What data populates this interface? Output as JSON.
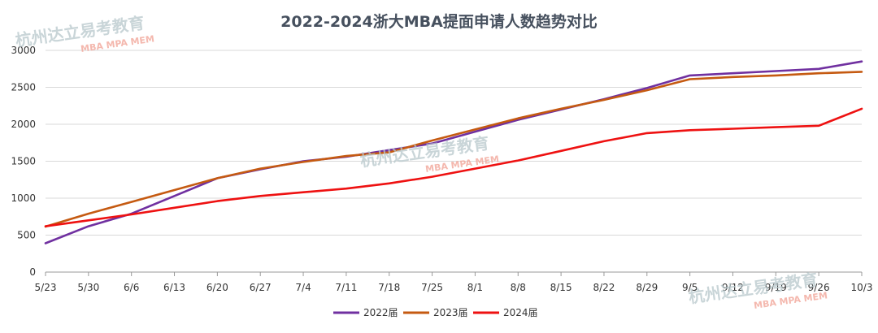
{
  "chart_data": {
    "type": "line",
    "title": "2022-2024浙大MBA提面申请人数趋势对比",
    "xlabel": "",
    "ylabel": "",
    "ylim": [
      0,
      3000
    ],
    "yticks": [
      0,
      500,
      1000,
      1500,
      2000,
      2500,
      3000
    ],
    "grid": "horizontal",
    "legend_position": "bottom",
    "categories": [
      "5/23",
      "5/30",
      "6/6",
      "6/13",
      "6/20",
      "6/27",
      "7/4",
      "7/11",
      "7/18",
      "7/25",
      "8/1",
      "8/8",
      "8/15",
      "8/22",
      "8/29",
      "9/5",
      "9/12",
      "9/19",
      "9/26",
      "10/3"
    ],
    "series": [
      {
        "name": "2022届",
        "color": "#7030a0",
        "values": [
          390,
          620,
          790,
          1030,
          1270,
          1390,
          1500,
          1560,
          1650,
          1740,
          1900,
          2060,
          2200,
          2340,
          2490,
          2660,
          2690,
          2720,
          2750,
          2850
        ]
      },
      {
        "name": "2023届",
        "color": "#c55a11",
        "values": [
          615,
          790,
          950,
          1110,
          1270,
          1400,
          1490,
          1570,
          1620,
          1780,
          1930,
          2080,
          2210,
          2330,
          2460,
          2610,
          2640,
          2660,
          2690,
          2710
        ]
      },
      {
        "name": "2024届",
        "color": "#ee1111",
        "values": [
          620,
          700,
          780,
          870,
          960,
          1030,
          1080,
          1130,
          1200,
          1290,
          1400,
          1510,
          1640,
          1770,
          1880,
          1920,
          1940,
          1960,
          1980,
          2210
        ]
      }
    ]
  },
  "watermarks": [
    {
      "cn": "杭州达立易考教育",
      "en": "MBA MPA MEM"
    },
    {
      "cn": "杭州达立易考教育",
      "en": "MBA MPA MEM"
    },
    {
      "cn": "杭州达立易考教育",
      "en": "MBA MPA MEM"
    }
  ]
}
